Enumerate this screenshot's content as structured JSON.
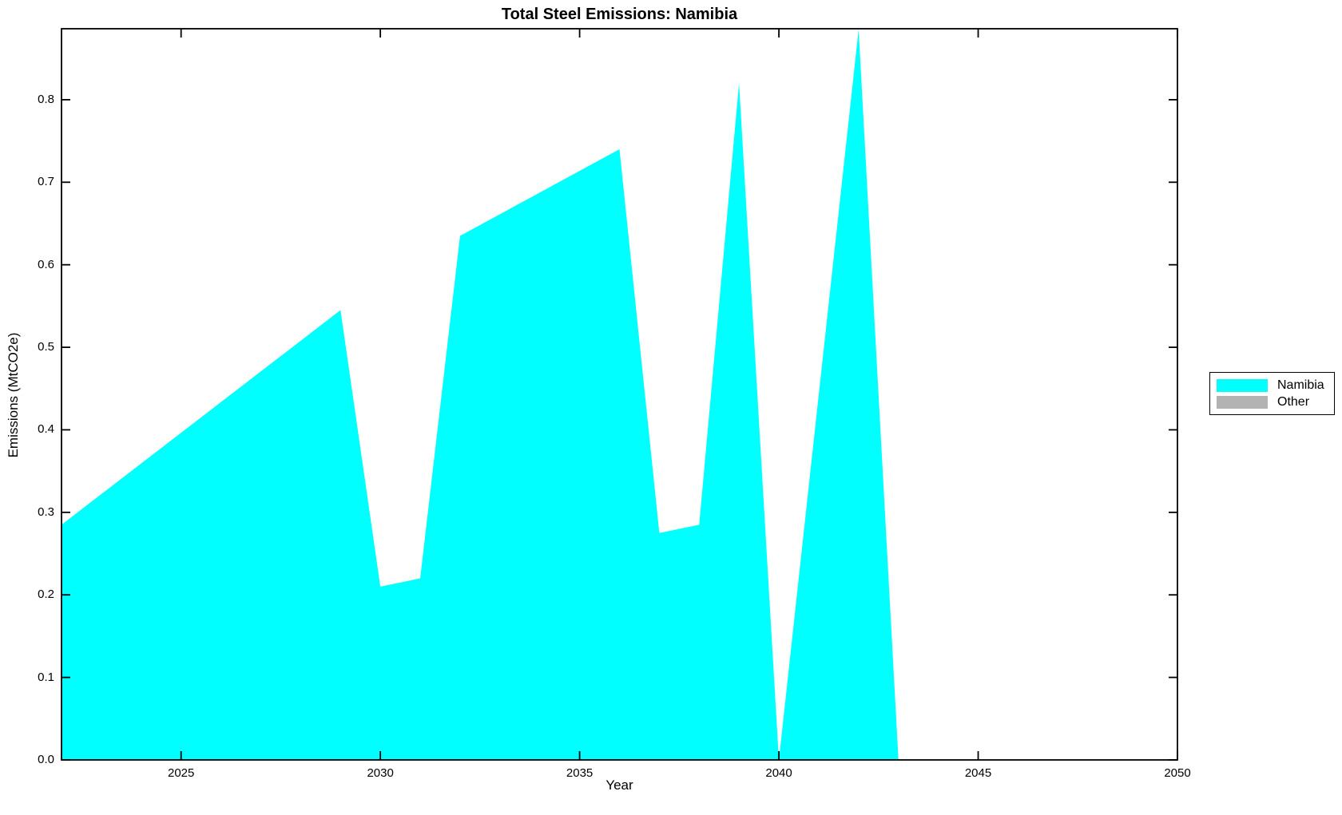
{
  "chart_data": {
    "type": "area",
    "title": "Total Steel Emissions: Namibia",
    "xlabel": "Year",
    "ylabel": "Emissions (MtCO2e)",
    "xlim": [
      2022,
      2050
    ],
    "ylim": [
      0,
      0.886
    ],
    "xticks": [
      2025,
      2030,
      2035,
      2040,
      2045,
      2050
    ],
    "yticks": [
      0.0,
      0.1,
      0.2,
      0.3,
      0.4,
      0.5,
      0.6,
      0.7,
      0.8
    ],
    "grid": false,
    "background_color": "#ffffff",
    "axis_color": "#000000",
    "legend": {
      "position": "outside-right",
      "entries": [
        {
          "label": "Namibia",
          "color": "#00ffff"
        },
        {
          "label": "Other",
          "color": "#b3b3b3"
        }
      ]
    },
    "series": [
      {
        "name": "Namibia",
        "color": "#00ffff",
        "x": [
          2022,
          2029,
          2030,
          2031,
          2032,
          2036,
          2037,
          2038,
          2039,
          2040,
          2042,
          2043,
          2050
        ],
        "y": [
          0.285,
          0.545,
          0.21,
          0.22,
          0.635,
          0.74,
          0.275,
          0.285,
          0.82,
          0.0,
          0.885,
          0.0,
          0.0
        ]
      }
    ]
  }
}
